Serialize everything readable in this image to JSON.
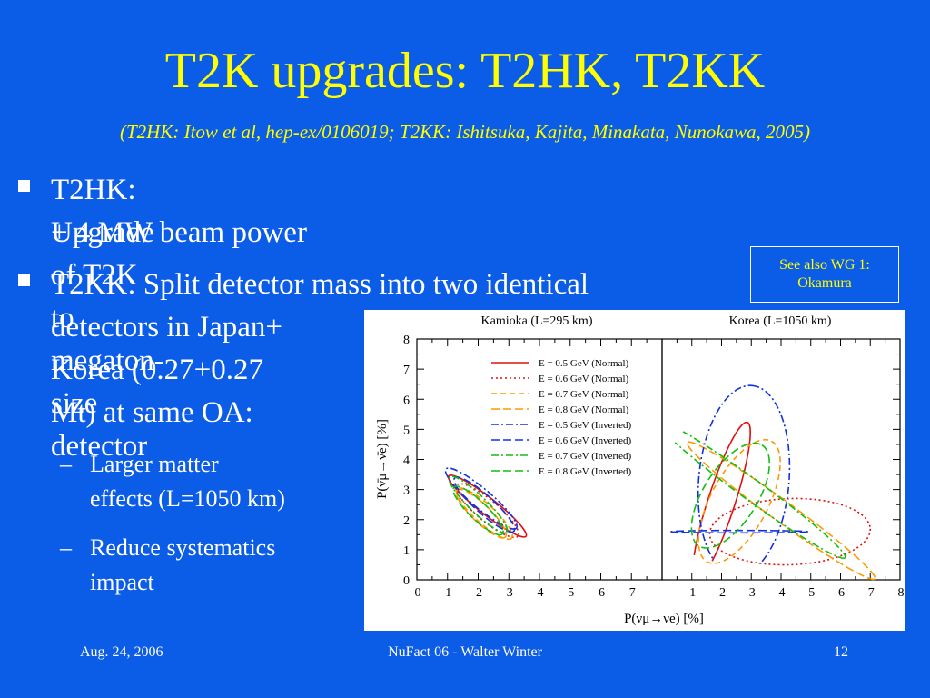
{
  "slide": {
    "title": "T2K upgrades: T2HK, T2KK",
    "subtitle": "(T2HK: Itow et al, hep-ex/0106019; T2KK: Ishitsuka, Kajita, Minakata, Nunokawa, 2005)",
    "bullets": [
      {
        "lines": [
          "T2HK: Upgrade of T2K to megaton-size detector",
          "+ 4 MW beam power"
        ]
      },
      {
        "lines": [
          "T2KK: Split detector mass into two identical",
          "detectors in Japan+",
          "Korea (0.27+0.27",
          "Mt) at same OA:"
        ]
      }
    ],
    "sub_bullets": [
      {
        "dash": "–",
        "lines": [
          "Larger matter",
          "effects (L=1050 km)"
        ]
      },
      {
        "dash": "–",
        "lines": [
          "Reduce systematics",
          "impact"
        ]
      }
    ],
    "note": [
      "See also WG 1:",
      "Okamura"
    ],
    "footer": {
      "date": "Aug. 24, 2006",
      "event": "NuFact 06 - Walter Winter",
      "page": "12"
    },
    "colors": {
      "background": "#0b5ce6",
      "title": "#ffff00",
      "text": "#ffffff"
    }
  },
  "chart_data": {
    "type": "line",
    "xlabel": "P(νμ→νe) [%]",
    "ylabel": "P(ν̄μ→ν̄e) [%]",
    "panels": [
      {
        "title": "Kamioka (L=295 km)",
        "xlim": [
          0,
          8
        ],
        "ylim": [
          0,
          8
        ],
        "xticks": [
          "0",
          "1",
          "2",
          "3",
          "4",
          "5",
          "6",
          "7"
        ],
        "yticks": [
          "0",
          "1",
          "2",
          "3",
          "4",
          "5",
          "6",
          "7",
          "8"
        ]
      },
      {
        "title": "Korea (L=1050 km)",
        "xlim": [
          0,
          8
        ],
        "ylim": [
          0,
          8
        ],
        "xticks": [
          "1",
          "2",
          "3",
          "4",
          "5",
          "6",
          "7",
          "8"
        ]
      }
    ],
    "series": [
      {
        "name": "E = 0.5 GeV (Normal)",
        "color": "#e01010",
        "dash": "solid",
        "kamioka": {
          "cx": 2.3,
          "cy": 2.45,
          "rx": 1.6,
          "ry": 0.28,
          "angle": -38
        },
        "korea": {
          "cx": 2.0,
          "cy": 2.6,
          "rx": 2.8,
          "ry": 0.45,
          "angle": 72
        }
      },
      {
        "name": "E = 0.6 GeV (Normal)",
        "color": "#e01010",
        "dash": "dot",
        "kamioka": {
          "cx": 2.3,
          "cy": 2.3,
          "rx": 1.3,
          "ry": 0.35,
          "angle": -40
        },
        "korea": {
          "cx": 4.3,
          "cy": 1.6,
          "rx": 2.7,
          "ry": 1.1,
          "angle": 2
        }
      },
      {
        "name": "E = 0.7 GeV (Normal)",
        "color": "#ff9900",
        "dash": "dash",
        "kamioka": {
          "cx": 2.2,
          "cy": 2.2,
          "rx": 1.2,
          "ry": 0.32,
          "angle": -42
        },
        "korea": {
          "cx": 2.6,
          "cy": 2.6,
          "rx": 2.3,
          "ry": 0.95,
          "angle": 62
        }
      },
      {
        "name": "E = 0.8 GeV (Normal)",
        "color": "#ff9900",
        "dash": "longdash",
        "kamioka": {
          "cx": 2.1,
          "cy": 2.2,
          "rx": 1.1,
          "ry": 0.3,
          "angle": -44
        },
        "korea": {
          "cx": 4.0,
          "cy": 2.3,
          "rx": 3.9,
          "ry": 0.35,
          "angle": -36
        }
      },
      {
        "name": "E = 0.5 GeV (Inverted)",
        "color": "#1030e0",
        "dash": "dashdot",
        "kamioka": {
          "cx": 2.1,
          "cy": 2.7,
          "rx": 1.5,
          "ry": 0.32,
          "angle": -40
        },
        "korea": {
          "cx": 2.75,
          "cy": 3.3,
          "rx": 3.2,
          "ry": 1.5,
          "angle": 85
        }
      },
      {
        "name": "E = 0.6 GeV (Inverted)",
        "color": "#1030e0",
        "dash": "longdash",
        "kamioka": {
          "cx": 2.2,
          "cy": 2.5,
          "rx": 1.3,
          "ry": 0.3,
          "angle": -42
        },
        "korea": {
          "cx": 2.6,
          "cy": 1.6,
          "rx": 2.3,
          "ry": 0.04,
          "angle": 0
        }
      },
      {
        "name": "E = 0.7 GeV (Inverted)",
        "color": "#10c010",
        "dash": "dashdot",
        "kamioka": {
          "cx": 2.0,
          "cy": 2.5,
          "rx": 1.3,
          "ry": 0.28,
          "angle": -44
        },
        "korea": {
          "cx": 3.0,
          "cy": 3.0,
          "rx": 3.9,
          "ry": 0.35,
          "angle": -36
        }
      },
      {
        "name": "E = 0.8 GeV (Inverted)",
        "color": "#10c010",
        "dash": "longdash",
        "kamioka": {
          "cx": 2.0,
          "cy": 2.3,
          "rx": 1.1,
          "ry": 0.3,
          "angle": -44
        },
        "korea": {
          "cx": 2.3,
          "cy": 2.8,
          "rx": 2.0,
          "ry": 0.9,
          "angle": 58
        }
      }
    ]
  }
}
